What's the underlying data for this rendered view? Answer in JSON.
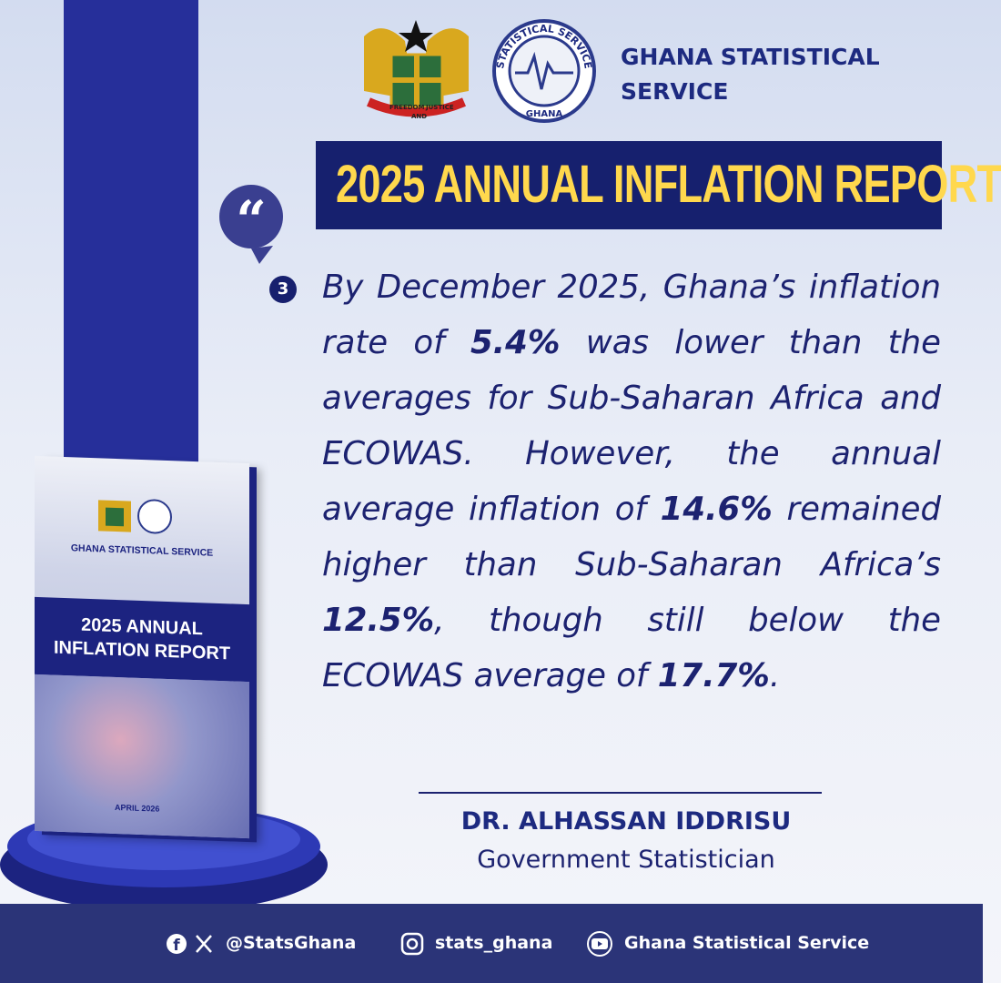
{
  "header": {
    "org_name_line1": "GHANA STATISTICAL",
    "org_name_line2": "SERVICE",
    "seal_top": "STATISTICAL SERVICE",
    "seal_bottom": "GHANA",
    "arms_motto": [
      "FREEDOM",
      "AND",
      "JUSTICE"
    ]
  },
  "title": "2025 ANNUAL INFLATION REPORT",
  "quote": {
    "number": "3",
    "segments": [
      {
        "text": "By December 2025, Ghana’s inflation rate of ",
        "bold": false
      },
      {
        "text": "5.4%",
        "bold": true
      },
      {
        "text": " was lower than the averages for Sub-Saharan Africa and ECOWAS. However, the annual average inflation of ",
        "bold": false
      },
      {
        "text": "14.6%",
        "bold": true
      },
      {
        "text": " remained higher than Sub-Saharan Africa’s ",
        "bold": false
      },
      {
        "text": "12.5%",
        "bold": true
      },
      {
        "text": ", though still below the ECOWAS average of ",
        "bold": false
      },
      {
        "text": "17.7%",
        "bold": true
      },
      {
        "text": ".",
        "bold": false
      }
    ]
  },
  "signature": {
    "name": "DR. ALHASSAN IDDRISU",
    "role": "Government Statistician"
  },
  "book": {
    "org_name": "GHANA STATISTICAL SERVICE",
    "title_line1": "2025 ANNUAL",
    "title_line2": "INFLATION REPORT",
    "date": "APRIL 2026"
  },
  "footer": {
    "twitter_facebook": "@StatsGhana",
    "instagram": "stats_ghana",
    "youtube": "Ghana Statistical Service"
  }
}
